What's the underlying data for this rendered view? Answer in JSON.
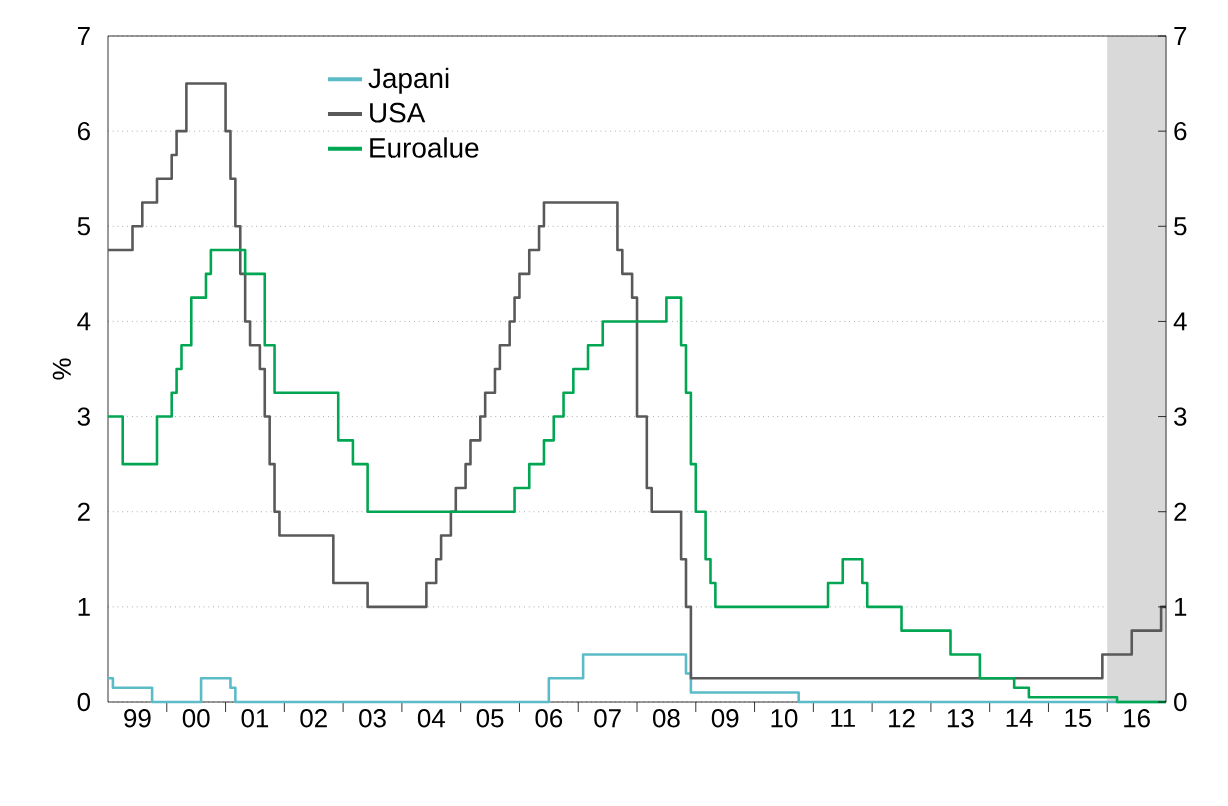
{
  "chart_data": {
    "type": "step",
    "ylabel": "%",
    "xlim": [
      "1999-01",
      "2017-01"
    ],
    "ylim": [
      0,
      7
    ],
    "yticks": [
      0,
      1,
      2,
      3,
      4,
      5,
      6,
      7
    ],
    "y2lim": [
      0,
      7
    ],
    "y2ticks": [
      0,
      1,
      2,
      3,
      4,
      5,
      6,
      7
    ],
    "xticks": [
      {
        "value": "2000",
        "label": null
      },
      {
        "value": "2001",
        "label": null
      },
      {
        "value": "2002",
        "label": null
      },
      {
        "value": "2003",
        "label": null
      },
      {
        "value": "2004",
        "label": null
      },
      {
        "value": "2005",
        "label": null
      },
      {
        "value": "2006",
        "label": null
      },
      {
        "value": "2007",
        "label": null
      },
      {
        "value": "2008",
        "label": null
      },
      {
        "value": "2009",
        "label": null
      },
      {
        "value": "2010",
        "label": null
      },
      {
        "value": "2011",
        "label": null
      },
      {
        "value": "2012",
        "label": null
      },
      {
        "value": "2013",
        "label": null
      },
      {
        "value": "2014",
        "label": null
      },
      {
        "value": "2015",
        "label": null
      },
      {
        "value": "2016",
        "label": null
      },
      {
        "value": "1999-07",
        "label": "99"
      },
      {
        "value": "2000-07",
        "label": "00"
      },
      {
        "value": "2001-07",
        "label": "01"
      },
      {
        "value": "2002-07",
        "label": "02"
      },
      {
        "value": "2003-07",
        "label": "03"
      },
      {
        "value": "2004-07",
        "label": "04"
      },
      {
        "value": "2005-07",
        "label": "05"
      },
      {
        "value": "2006-07",
        "label": "06"
      },
      {
        "value": "2007-07",
        "label": "07"
      },
      {
        "value": "2008-07",
        "label": "08"
      },
      {
        "value": "2009-07",
        "label": "09"
      },
      {
        "value": "2010-07",
        "label": "10"
      },
      {
        "value": "2011-07",
        "label": "11"
      },
      {
        "value": "2012-07",
        "label": "12"
      },
      {
        "value": "2013-07",
        "label": "13"
      },
      {
        "value": "2014-07",
        "label": "14"
      },
      {
        "value": "2015-07",
        "label": "15"
      },
      {
        "value": "2016-07",
        "label": "16"
      }
    ],
    "grid": "y",
    "legend": "top left",
    "line_style": "solid",
    "bands": [
      {
        "axis": "x",
        "from": "2016-01",
        "to": "2017-01",
        "color": "#d9d9d9"
      }
    ],
    "series": [
      {
        "name": "Japani",
        "color": "#5bbcc8",
        "x": [
          "1999-01",
          "1999-02",
          "1999-10",
          "2000-08",
          "2001-02",
          "2001-03",
          "2006-07",
          "2007-02",
          "2008-11",
          "2008-12",
          "2010-10",
          "2017-01"
        ],
        "values": [
          0.25,
          0.15,
          0.0,
          0.25,
          0.15,
          0.0,
          0.25,
          0.5,
          0.3,
          0.1,
          0.0,
          0.0
        ]
      },
      {
        "name": "USA",
        "color": "#595959",
        "x": [
          "1999-01",
          "1999-06",
          "1999-08",
          "1999-11",
          "2000-02",
          "2000-03",
          "2000-05",
          "2001-01",
          "2001-02",
          "2001-03",
          "2001-04",
          "2001-05",
          "2001-06",
          "2001-08",
          "2001-09",
          "2001-10",
          "2001-11",
          "2001-12",
          "2002-11",
          "2003-06",
          "2004-06",
          "2004-08",
          "2004-09",
          "2004-11",
          "2004-12",
          "2005-02",
          "2005-03",
          "2005-05",
          "2005-06",
          "2005-08",
          "2005-09",
          "2005-11",
          "2005-12",
          "2006-01",
          "2006-03",
          "2006-05",
          "2006-06",
          "2007-09",
          "2007-10",
          "2007-12",
          "2008-01",
          "2008-03",
          "2008-04",
          "2008-10",
          "2008-11",
          "2008-12",
          "2015-12",
          "2016-06",
          "2016-12",
          "2017-01"
        ],
        "values": [
          4.75,
          5.0,
          5.25,
          5.5,
          5.75,
          6.0,
          6.5,
          6.0,
          5.5,
          5.0,
          4.5,
          4.0,
          3.75,
          3.5,
          3.0,
          2.5,
          2.0,
          1.75,
          1.25,
          1.0,
          1.25,
          1.5,
          1.75,
          2.0,
          2.25,
          2.5,
          2.75,
          3.0,
          3.25,
          3.5,
          3.75,
          4.0,
          4.25,
          4.5,
          4.75,
          5.0,
          5.25,
          4.75,
          4.5,
          4.25,
          3.0,
          2.25,
          2.0,
          1.5,
          1.0,
          0.25,
          0.5,
          0.75,
          1.0,
          1.0
        ]
      },
      {
        "name": "Euroalue",
        "color": "#00a651",
        "x": [
          "1999-01",
          "1999-04",
          "1999-11",
          "2000-02",
          "2000-03",
          "2000-04",
          "2000-06",
          "2000-09",
          "2000-10",
          "2001-05",
          "2001-09",
          "2001-11",
          "2002-12",
          "2003-03",
          "2003-06",
          "2005-12",
          "2006-03",
          "2006-06",
          "2006-08",
          "2006-10",
          "2006-12",
          "2007-03",
          "2007-06",
          "2008-07",
          "2008-10",
          "2008-11",
          "2008-12",
          "2009-01",
          "2009-03",
          "2009-04",
          "2009-05",
          "2011-04",
          "2011-07",
          "2011-11",
          "2011-12",
          "2012-07",
          "2013-05",
          "2013-11",
          "2014-06",
          "2014-09",
          "2016-03",
          "2017-01"
        ],
        "values": [
          3.0,
          2.5,
          3.0,
          3.25,
          3.5,
          3.75,
          4.25,
          4.5,
          4.75,
          4.5,
          3.75,
          3.25,
          2.75,
          2.5,
          2.0,
          2.25,
          2.5,
          2.75,
          3.0,
          3.25,
          3.5,
          3.75,
          4.0,
          4.25,
          3.75,
          3.25,
          2.5,
          2.0,
          1.5,
          1.25,
          1.0,
          1.25,
          1.5,
          1.25,
          1.0,
          0.75,
          0.5,
          0.25,
          0.15,
          0.05,
          0.0,
          0.0
        ]
      }
    ]
  }
}
